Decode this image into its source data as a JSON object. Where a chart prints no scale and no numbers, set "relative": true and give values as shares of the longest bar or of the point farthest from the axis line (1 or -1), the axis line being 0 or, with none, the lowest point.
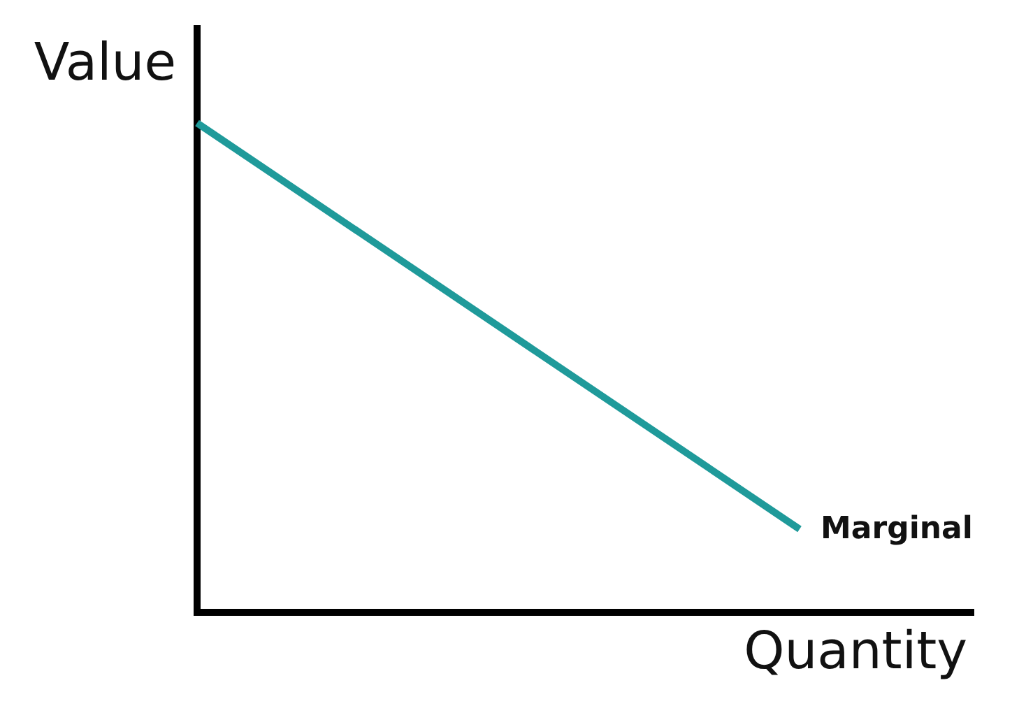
{
  "chart_data": {
    "type": "line",
    "xlabel": "Quantity",
    "ylabel": "Value",
    "categories": [
      null,
      null
    ],
    "series": [
      {
        "name": "Marginal",
        "color": "#1f9a9a",
        "values": [
          1,
          0.17
        ]
      }
    ],
    "relative": true,
    "marker": "none",
    "line_style": "solid"
  }
}
